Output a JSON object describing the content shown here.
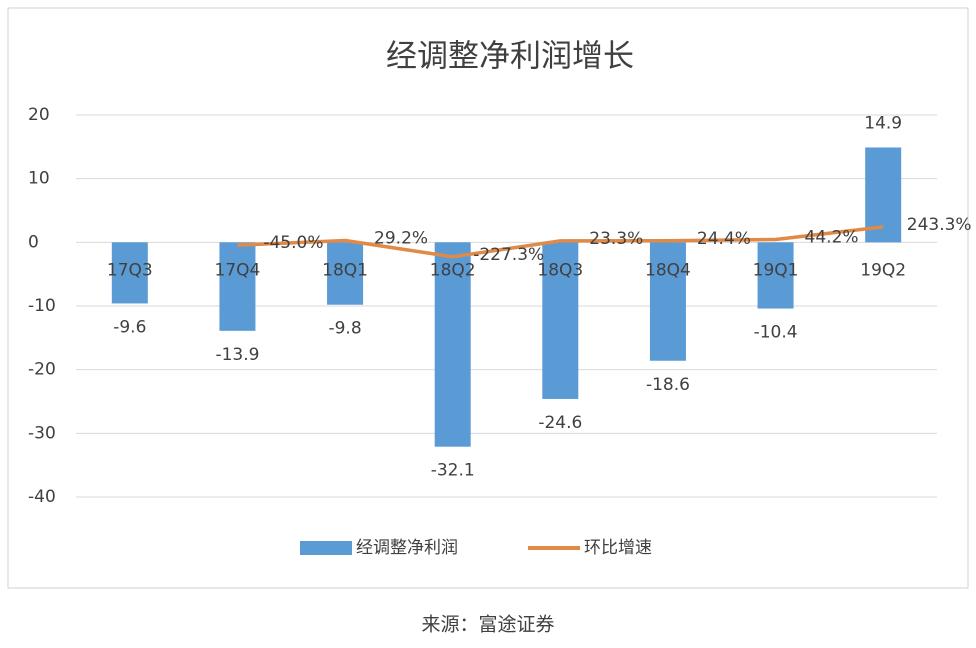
{
  "chart_data": {
    "type": "bar",
    "title": "经调整净利润增长",
    "categories": [
      "17Q3",
      "17Q4",
      "18Q1",
      "18Q2",
      "18Q3",
      "18Q4",
      "19Q1",
      "19Q2"
    ],
    "series": [
      {
        "name": "经调整净利润",
        "type": "bar",
        "color": "#5b9bd5",
        "values": [
          -9.6,
          -13.9,
          -9.8,
          -32.1,
          -24.6,
          -18.6,
          -10.4,
          14.9
        ]
      },
      {
        "name": "环比增速",
        "type": "line",
        "color": "#e08a45",
        "values": [
          null,
          -0.45,
          0.292,
          -2.273,
          0.233,
          0.244,
          0.442,
          2.433
        ],
        "value_labels": [
          null,
          "-45.0%",
          "29.2%",
          "-227.3%",
          "23.3%",
          "24.4%",
          "44.2%",
          "243.3%"
        ]
      }
    ],
    "ylim": [
      -40,
      20
    ],
    "yticks": [
      -40,
      -30,
      -20,
      -10,
      0,
      10,
      20
    ],
    "grid": true,
    "legend": "bottom"
  },
  "source": "来源：富途证券"
}
